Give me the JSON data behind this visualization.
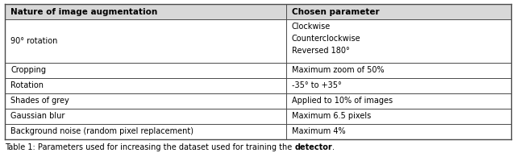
{
  "header": [
    "Nature of image augmentation",
    "Chosen parameter"
  ],
  "rows": [
    [
      "90° rotation",
      "Clockwise\nCounterclockwise\nReversed 180°"
    ],
    [
      "Cropping",
      "Maximum zoom of 50%"
    ],
    [
      "Rotation",
      "-35° to +35°"
    ],
    [
      "Shades of grey",
      "Applied to 10% of images"
    ],
    [
      "Gaussian blur",
      "Maximum 6.5 pixels"
    ],
    [
      "Background noise (random pixel replacement)",
      "Maximum 4%"
    ]
  ],
  "caption_parts": [
    "Table 1: Parameters used for increasing the dataset used for training the ",
    "detector",
    "."
  ],
  "col_split": 0.555,
  "bg_color": "#ffffff",
  "header_bg": "#d8d8d8",
  "border_color": "#4a4a4a",
  "text_color": "#000000",
  "font_size": 7.0,
  "header_font_size": 7.5,
  "caption_font_size": 7.0,
  "fig_width": 6.4,
  "fig_height": 1.95,
  "dpi": 100
}
